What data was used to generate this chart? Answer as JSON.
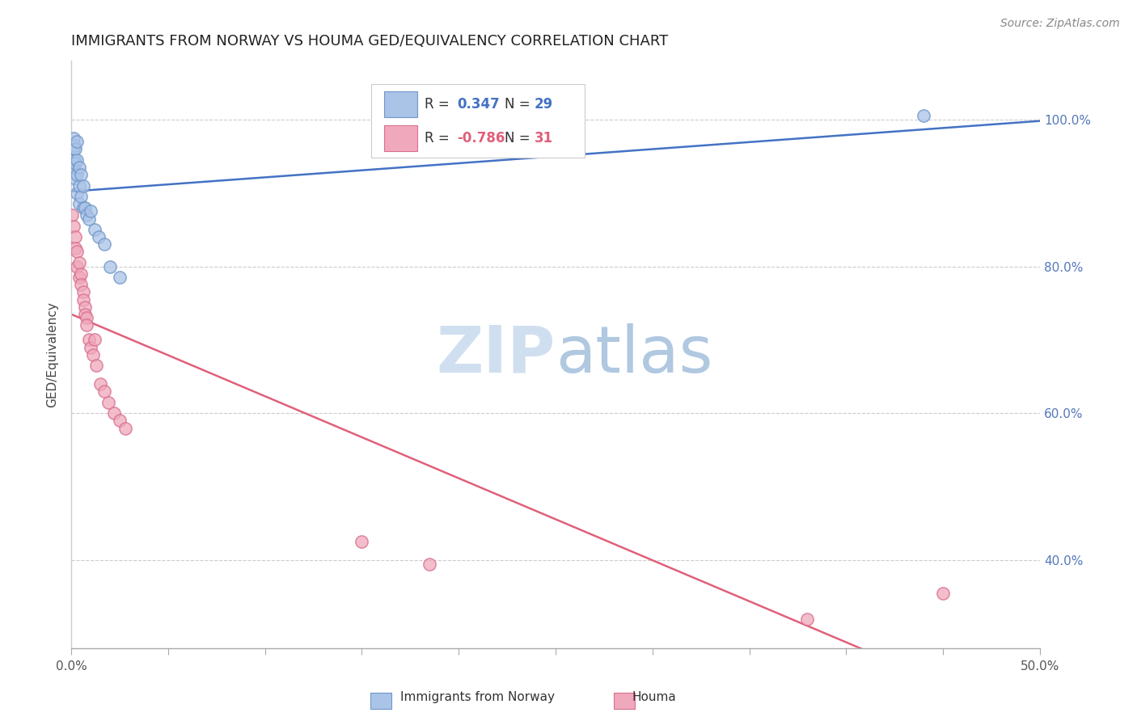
{
  "title": "IMMIGRANTS FROM NORWAY VS HOUMA GED/EQUIVALENCY CORRELATION CHART",
  "source": "Source: ZipAtlas.com",
  "ylabel": "GED/Equivalency",
  "xlim": [
    0.0,
    0.5
  ],
  "ylim": [
    0.28,
    1.08
  ],
  "xticks": [
    0.0,
    0.05,
    0.1,
    0.15,
    0.2,
    0.25,
    0.3,
    0.35,
    0.4,
    0.45,
    0.5
  ],
  "xticklabels": [
    "0.0%",
    "",
    "",
    "",
    "",
    "",
    "",
    "",
    "",
    "",
    "50.0%"
  ],
  "yticks": [
    0.4,
    0.6,
    0.8,
    1.0
  ],
  "yticklabels": [
    "40.0%",
    "60.0%",
    "80.0%",
    "100.0%"
  ],
  "grid_color": "#cccccc",
  "background_color": "#ffffff",
  "legend_r_blue": "0.347",
  "legend_n_blue": "29",
  "legend_r_pink": "-0.786",
  "legend_n_pink": "31",
  "blue_scatter_x": [
    0.0005,
    0.001,
    0.001,
    0.0015,
    0.0015,
    0.002,
    0.002,
    0.002,
    0.003,
    0.003,
    0.003,
    0.003,
    0.004,
    0.004,
    0.004,
    0.005,
    0.005,
    0.006,
    0.006,
    0.007,
    0.008,
    0.009,
    0.01,
    0.012,
    0.014,
    0.017,
    0.02,
    0.025,
    0.44
  ],
  "blue_scatter_y": [
    0.935,
    0.96,
    0.975,
    0.945,
    0.965,
    0.92,
    0.94,
    0.96,
    0.9,
    0.925,
    0.945,
    0.97,
    0.885,
    0.91,
    0.935,
    0.895,
    0.925,
    0.88,
    0.91,
    0.88,
    0.87,
    0.865,
    0.875,
    0.85,
    0.84,
    0.83,
    0.8,
    0.785,
    1.005
  ],
  "pink_scatter_x": [
    0.0005,
    0.001,
    0.002,
    0.002,
    0.003,
    0.003,
    0.004,
    0.004,
    0.005,
    0.005,
    0.006,
    0.006,
    0.007,
    0.007,
    0.008,
    0.008,
    0.009,
    0.01,
    0.011,
    0.012,
    0.013,
    0.015,
    0.017,
    0.019,
    0.022,
    0.025,
    0.028,
    0.15,
    0.185,
    0.38,
    0.45
  ],
  "pink_scatter_y": [
    0.87,
    0.855,
    0.84,
    0.825,
    0.82,
    0.8,
    0.805,
    0.785,
    0.79,
    0.775,
    0.765,
    0.755,
    0.745,
    0.735,
    0.73,
    0.72,
    0.7,
    0.69,
    0.68,
    0.7,
    0.665,
    0.64,
    0.63,
    0.615,
    0.6,
    0.59,
    0.58,
    0.425,
    0.395,
    0.32,
    0.355
  ],
  "blue_line_color": "#4472c4",
  "pink_line_color": "#e0607a",
  "blue_dot_facecolor": "#aac4e8",
  "blue_dot_edgecolor": "#7096c8",
  "pink_dot_facecolor": "#f0a8bc",
  "pink_dot_edgecolor": "#d87090",
  "dot_size": 120,
  "dot_alpha": 0.75,
  "line_width": 1.8,
  "title_fontsize": 13,
  "axis_label_fontsize": 11,
  "tick_fontsize": 11,
  "legend_fontsize": 12,
  "source_fontsize": 10,
  "right_tick_color": "#5577bb"
}
